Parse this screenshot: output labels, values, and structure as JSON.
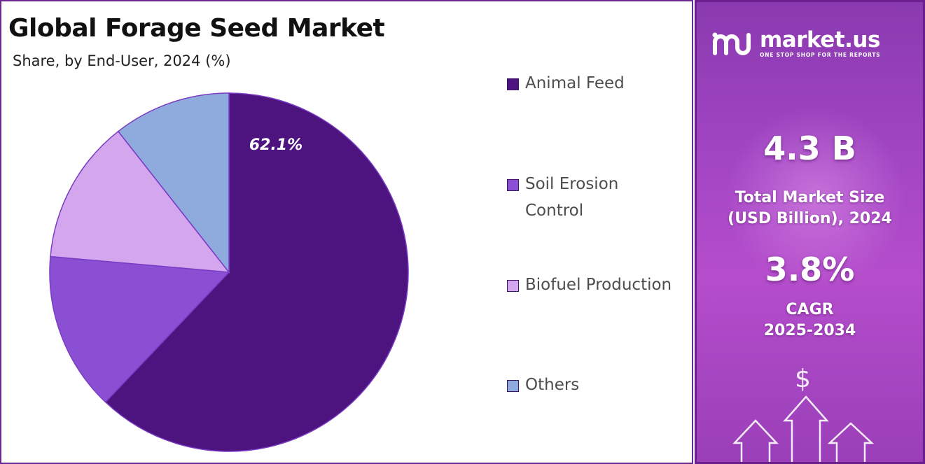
{
  "title": "Global Forage Seed Market",
  "subtitle": "Share, by End-User, 2024 (%)",
  "chart_data": {
    "type": "pie",
    "title": "Global Forage Seed Market",
    "subtitle": "Share, by End-User, 2024 (%)",
    "legend_position": "right",
    "slices": [
      {
        "label": "Animal Feed",
        "value": 62.1,
        "color": "#4d1480",
        "value_label": "62.1%"
      },
      {
        "label": "Soil Erosion Control",
        "value": 14.3,
        "color": "#8a4fd3"
      },
      {
        "label": "Biofuel Production",
        "value": 13.0,
        "color": "#d3a6ee"
      },
      {
        "label": "Others",
        "value": 10.6,
        "color": "#8faadc"
      }
    ]
  },
  "legend": {
    "items": [
      {
        "label": "Animal Feed",
        "color": "#4d1480"
      },
      {
        "label": "Soil Erosion Control",
        "color": "#8a4fd3"
      },
      {
        "label": "Biofuel Production",
        "color": "#d3a6ee"
      },
      {
        "label": "Others",
        "color": "#8faadc"
      }
    ]
  },
  "sidebar": {
    "brand_name": "market.us",
    "brand_tagline": "ONE STOP SHOP FOR THE REPORTS",
    "market_size_value": "4.3 B",
    "market_size_label_line1": "Total Market Size",
    "market_size_label_line2": "(USD Billion), 2024",
    "cagr_value": "3.8%",
    "cagr_label_line1": "CAGR",
    "cagr_label_line2": "2025-2034",
    "currency_symbol": "$"
  }
}
